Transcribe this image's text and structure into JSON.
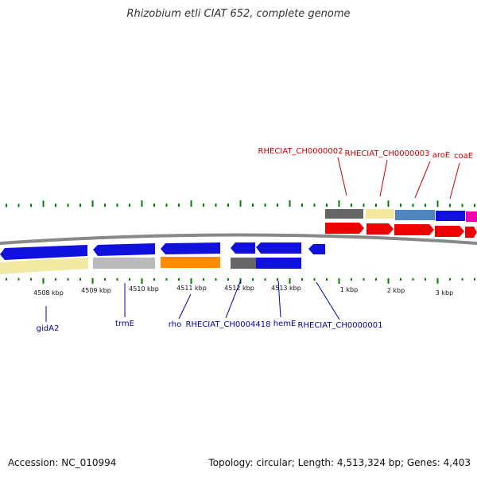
{
  "title": "Rhizobium etli CIAT 652, complete genome",
  "footer": {
    "accession": "Accession: NC_010994",
    "summary": "Topology: circular; Length: 4,513,324 bp; Genes: 4,403"
  },
  "scale_labels": [
    "4508 kbp",
    "4509 kbp",
    "4510 kbp",
    "4511 kbp",
    "4512 kbp",
    "4513 kbp",
    "1 kbp",
    "2 kbp",
    "3 kbp"
  ],
  "gene_labels_top": [
    "RHECIAT_CH0000002",
    "RHECIAT_CH0000003",
    "aroE",
    "coaE"
  ],
  "gene_labels_bottom": [
    "gidA2",
    "trmE",
    "rho",
    "RHECIAT_CH0004418",
    "hemE",
    "RHECIAT_CH0000001"
  ],
  "colors": {
    "label_top": "#cc0000",
    "label_bottom": "#0000aa",
    "tick": "#008000",
    "backbone": "#888888",
    "gene_blue": "#1111dd",
    "gene_red": "#ee0000",
    "cog_khaki": "#f2e9a3",
    "cog_grey": "#bbbbbb",
    "cog_orange": "#ff8c00",
    "cog_darkgrey": "#666666",
    "cog_steel": "#4f86c0",
    "cog_magenta": "#ee00aa"
  }
}
